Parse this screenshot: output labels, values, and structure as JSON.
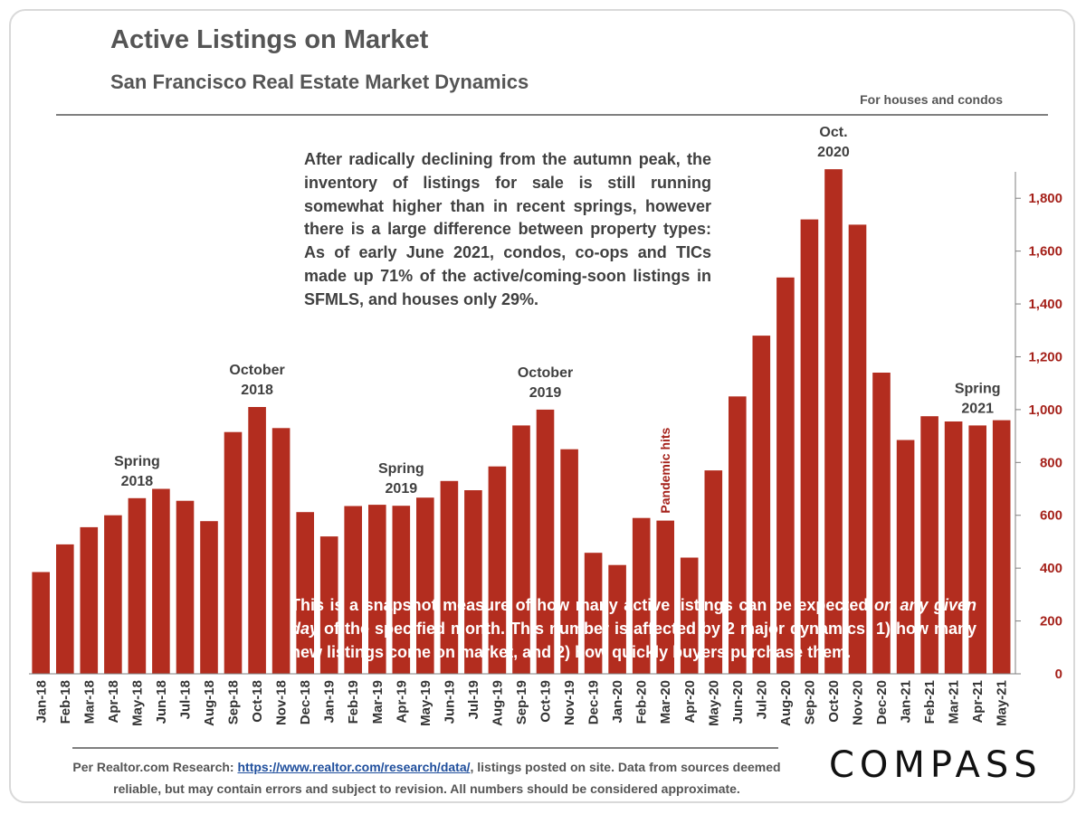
{
  "header": {
    "title": "Active Listings on Market",
    "subtitle": "San Francisco Real Estate Market Dynamics",
    "scope": "For houses and condos"
  },
  "commentary": "After radically declining from the autumn peak, the inventory of listings for sale is still running somewhat higher than in recent springs, however there is a large difference between property types: As of early June 2021, condos, co-ops and TICs made up 71% of the active/coming-soon listings in SFMLS, and houses only 29%.",
  "callout": {
    "part1": "This is a snapshot measure of how many active listings can be expected ",
    "emphasis": "on any given day",
    "part2": " of the specified month. This number is affected by 2 major dynamics: 1) how many new listings come on market, and 2) how quickly buyers purchase them."
  },
  "footer": {
    "prefix": "Per Realtor.com Research: ",
    "link": "https://www.realtor.com/research/data/",
    "suffix": ", listings posted on site. Data from sources deemed reliable, but may contain errors and subject to revision. All numbers should be considered approximate.",
    "logo": "COMPASS"
  },
  "colors": {
    "bar": "#b32d1f",
    "axis_text": "#a5211a"
  },
  "chart_data": {
    "type": "bar",
    "title": "Active Listings on Market",
    "categories": [
      "Jan-18",
      "Feb-18",
      "Mar-18",
      "Apr-18",
      "May-18",
      "Jun-18",
      "Jul-18",
      "Aug-18",
      "Sep-18",
      "Oct-18",
      "Nov-18",
      "Dec-18",
      "Jan-19",
      "Feb-19",
      "Mar-19",
      "Apr-19",
      "May-19",
      "Jun-19",
      "Jul-19",
      "Aug-19",
      "Sep-19",
      "Oct-19",
      "Nov-19",
      "Dec-19",
      "Jan-20",
      "Feb-20",
      "Mar-20",
      "Apr-20",
      "May-20",
      "Jun-20",
      "Jul-20",
      "Aug-20",
      "Sep-20",
      "Oct-20",
      "Nov-20",
      "Dec-20",
      "Jan-21",
      "Feb-21",
      "Mar-21",
      "Apr-21",
      "May-21"
    ],
    "values": [
      385,
      490,
      555,
      600,
      665,
      700,
      655,
      578,
      915,
      1010,
      930,
      612,
      520,
      635,
      640,
      636,
      667,
      730,
      695,
      785,
      940,
      1000,
      850,
      458,
      412,
      590,
      580,
      440,
      770,
      1050,
      1280,
      1500,
      1720,
      1910,
      1700,
      1140,
      885,
      975,
      955,
      940,
      960
    ],
    "ylim": [
      0,
      1900
    ],
    "yticks": [
      "0",
      "200",
      "400",
      "600",
      "800",
      "1,000",
      "1,200",
      "1,400",
      "1,600",
      "1,800"
    ],
    "ytick_values": [
      0,
      200,
      400,
      600,
      800,
      1000,
      1200,
      1400,
      1600,
      1800
    ],
    "y_axis_side": "right",
    "annotations": [
      {
        "category": "May-18",
        "lines": [
          "Spring",
          "2018"
        ]
      },
      {
        "category": "Oct-18",
        "lines": [
          "October",
          "2018"
        ]
      },
      {
        "category": "Apr-19",
        "lines": [
          "Spring",
          "2019"
        ]
      },
      {
        "category": "Oct-19",
        "lines": [
          "October",
          "2019"
        ]
      },
      {
        "category": "Mar-20",
        "lines": [
          "Pandemic hits"
        ],
        "vertical": true
      },
      {
        "category": "Oct-20",
        "lines": [
          "Oct.",
          "2020"
        ]
      },
      {
        "category": "Apr-21",
        "lines": [
          "Spring",
          "2021"
        ]
      }
    ]
  }
}
